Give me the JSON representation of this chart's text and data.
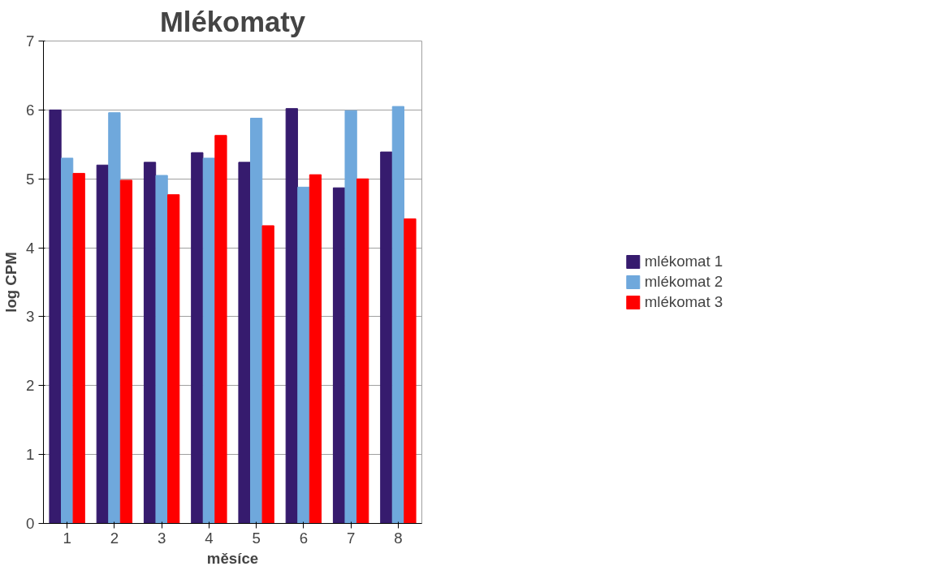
{
  "chart_data": {
    "type": "bar",
    "title": "Mlékomaty",
    "xlabel": "měsíce",
    "ylabel": "log CPM",
    "categories": [
      "1",
      "2",
      "3",
      "4",
      "5",
      "6",
      "7",
      "8"
    ],
    "series": [
      {
        "name": "mlékomat 1",
        "color": "#361b6e",
        "values": [
          6.0,
          5.2,
          5.24,
          5.38,
          5.24,
          6.02,
          4.87,
          5.39
        ]
      },
      {
        "name": "mlékomat 2",
        "color": "#6fa8dc",
        "values": [
          5.3,
          5.96,
          5.05,
          5.3,
          5.88,
          4.88,
          5.99,
          6.05
        ]
      },
      {
        "name": "mlékomat 3",
        "color": "#ff0000",
        "values": [
          5.08,
          4.98,
          4.77,
          5.63,
          4.32,
          5.06,
          5.0,
          4.42
        ]
      }
    ],
    "ylim": [
      0,
      7
    ],
    "yticks": [
      0,
      1,
      2,
      3,
      4,
      5,
      6,
      7
    ],
    "grid": "y",
    "legend": "right"
  }
}
